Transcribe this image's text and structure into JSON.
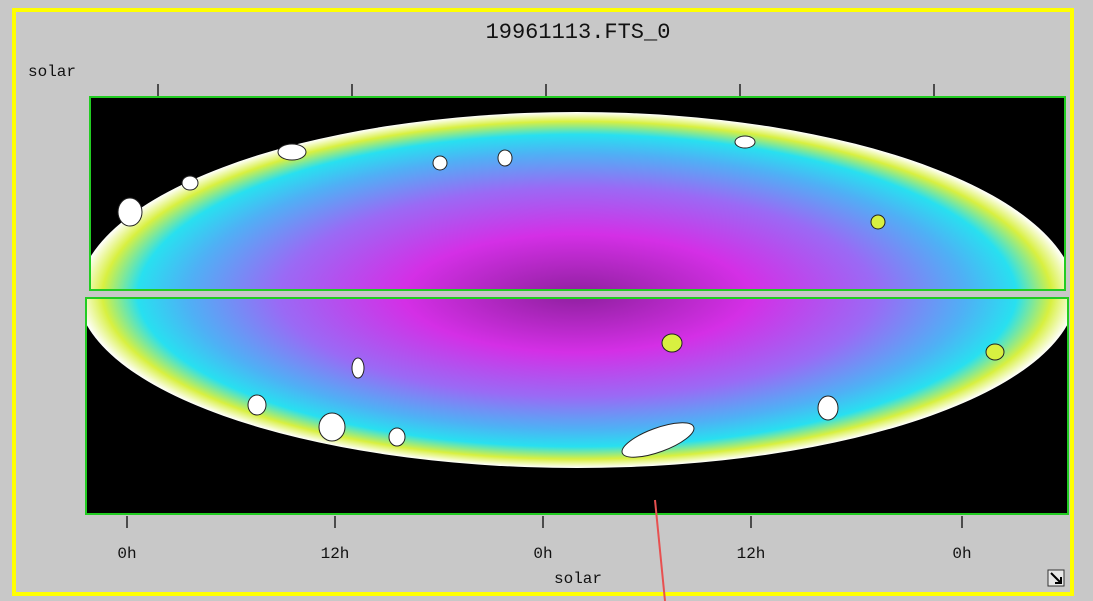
{
  "window": {
    "title": "19961113.FTS_0"
  },
  "plot": {
    "y_axis_label": "solar",
    "x_axis_label": "solar",
    "x_tick_labels": [
      "0h",
      "12h",
      "0h",
      "12h",
      "0h"
    ]
  }
}
